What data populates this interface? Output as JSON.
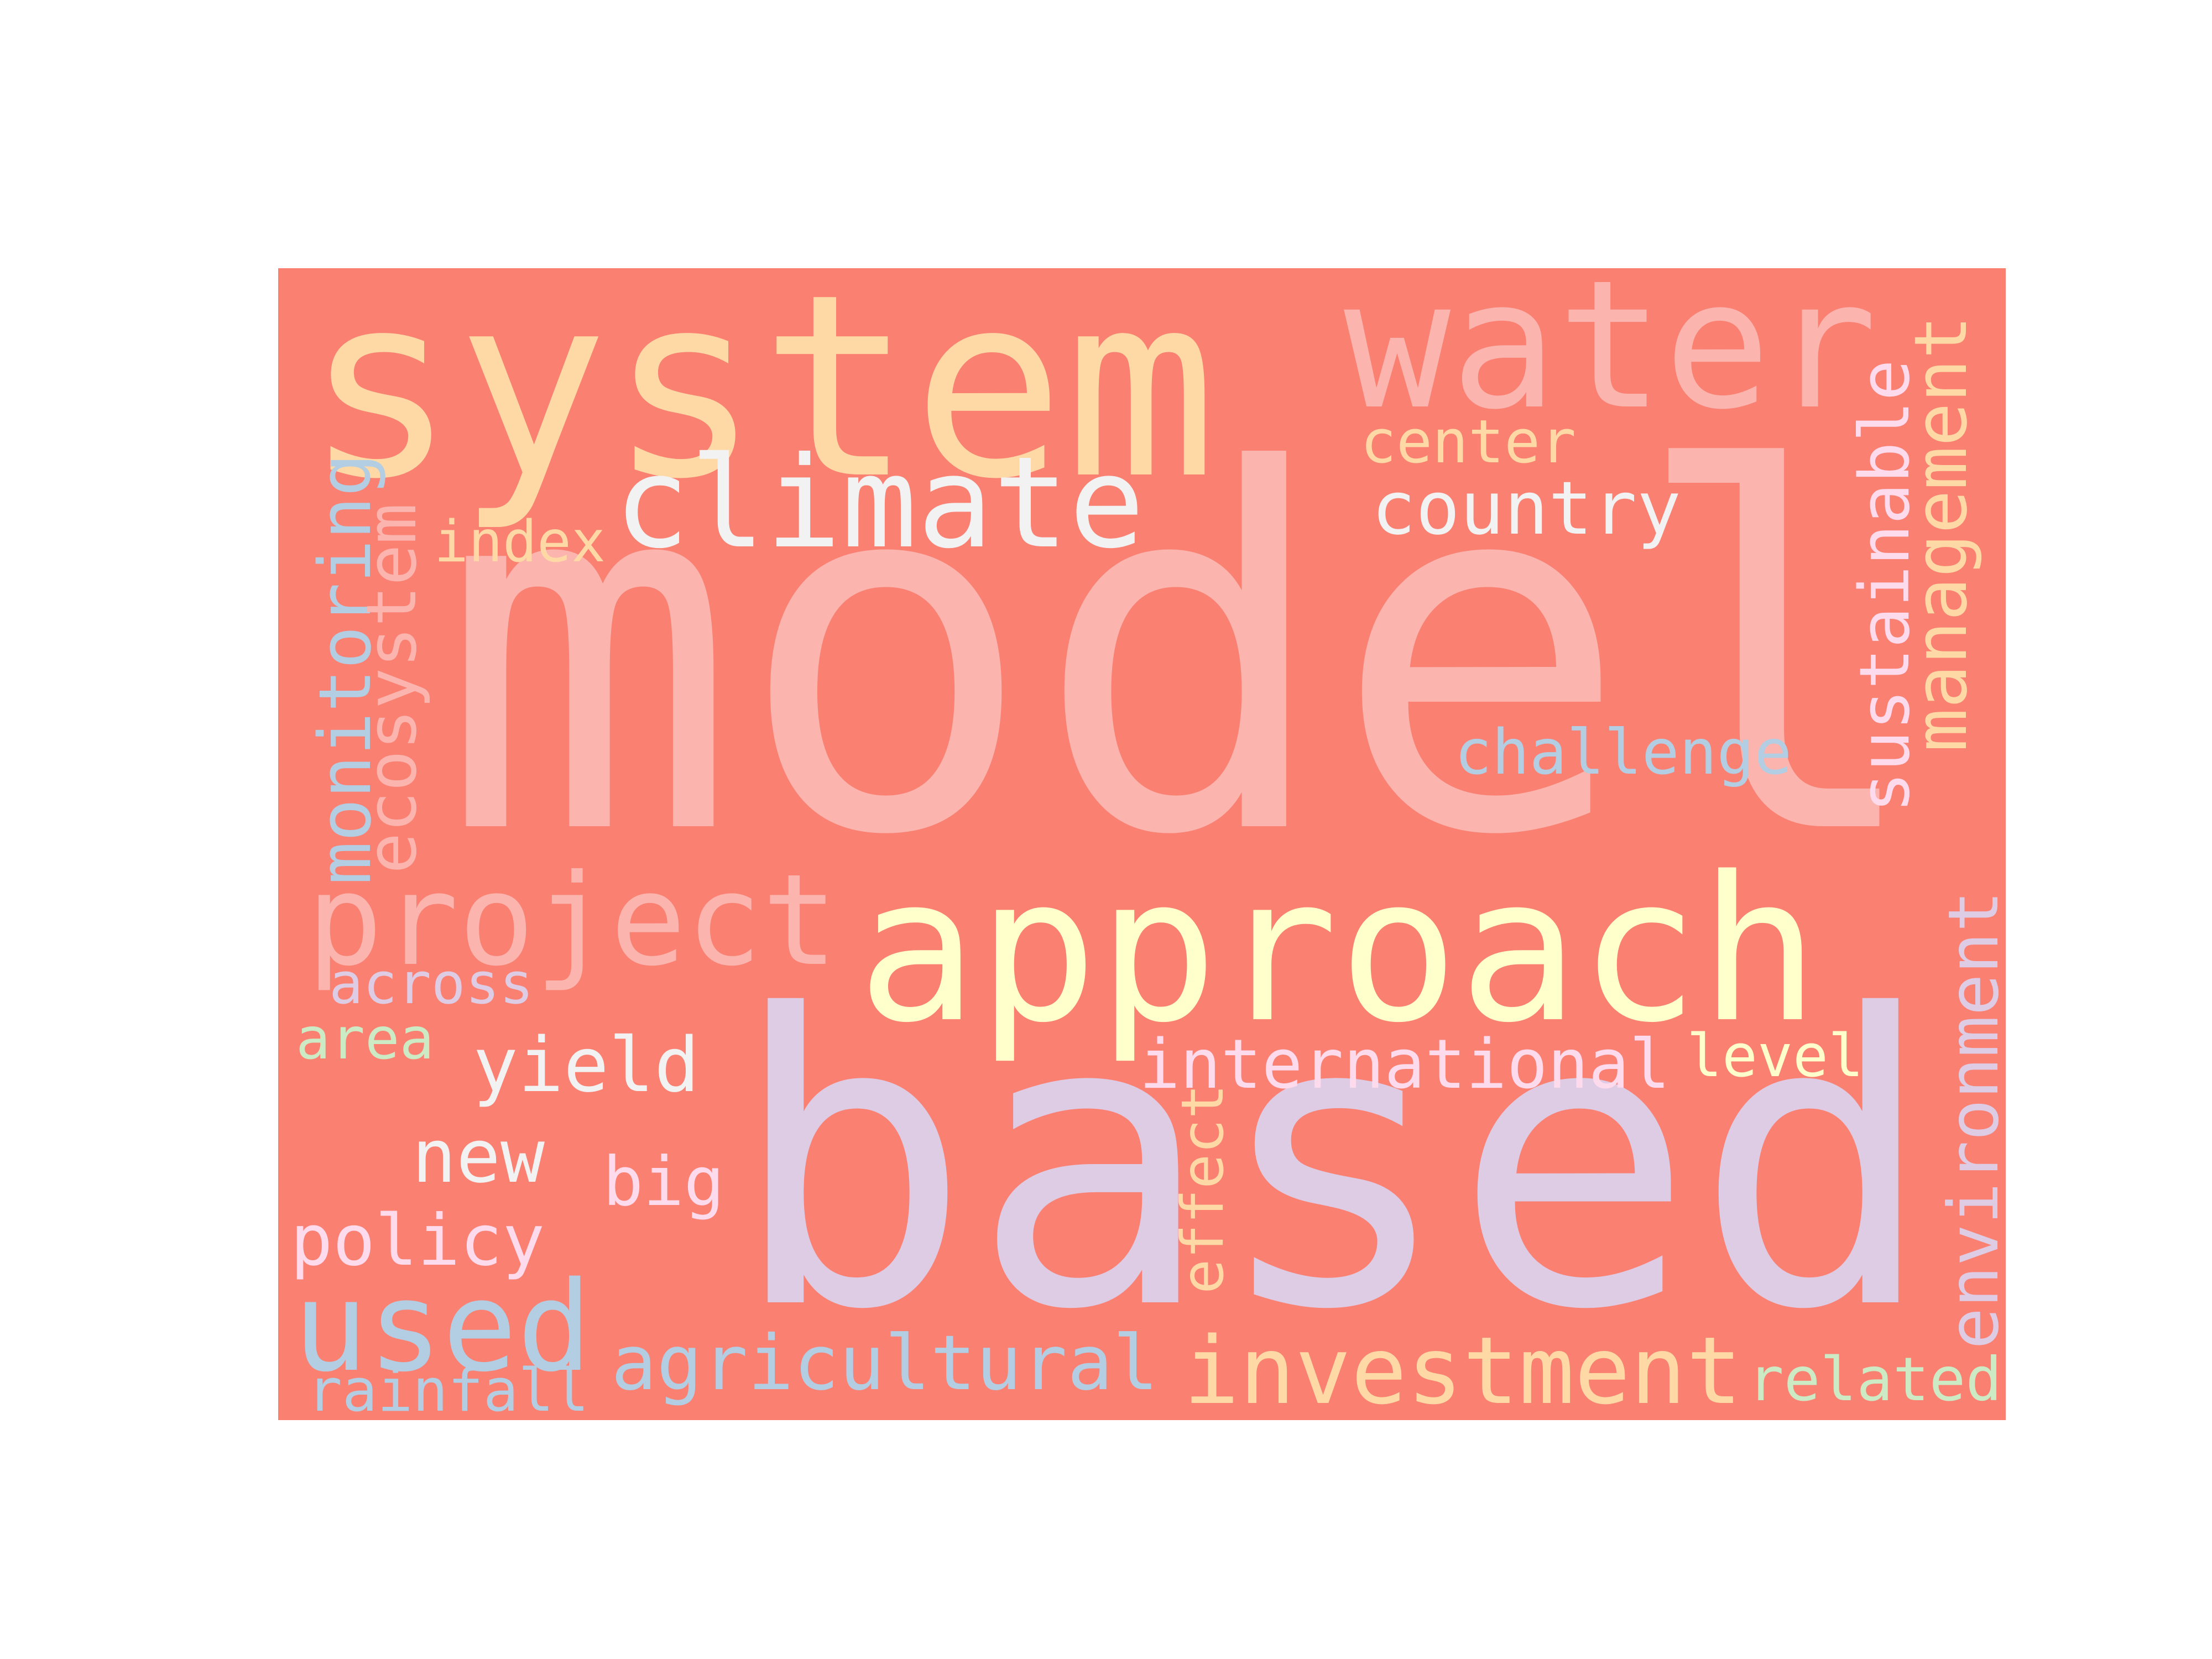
{
  "words": [
    {
      "key": "model",
      "text": "model",
      "color": "#fbb4ae"
    },
    {
      "key": "based",
      "text": "based",
      "color": "#decbe4"
    },
    {
      "key": "system",
      "text": "system",
      "color": "#fed9a6"
    },
    {
      "key": "water",
      "text": "water",
      "color": "#fbb4ae"
    },
    {
      "key": "approach",
      "text": "approach",
      "color": "#ffffcc"
    },
    {
      "key": "climate",
      "text": "climate",
      "color": "#f2f2f2"
    },
    {
      "key": "project",
      "text": "project",
      "color": "#fbb4ae"
    },
    {
      "key": "investment",
      "text": "investment",
      "color": "#fed9a6"
    },
    {
      "key": "used",
      "text": "used",
      "color": "#b3cde3"
    },
    {
      "key": "country",
      "text": "country",
      "color": "#f2f2f2"
    },
    {
      "key": "international",
      "text": "international",
      "color": "#fddaec"
    },
    {
      "key": "agricultural",
      "text": "agricultural",
      "color": "#b3cde3"
    },
    {
      "key": "management",
      "text": "management",
      "color": "#fed9a6"
    },
    {
      "key": "sustainable",
      "text": "sustainable",
      "color": "#fddaec"
    },
    {
      "key": "environment",
      "text": "environment",
      "color": "#decbe4"
    },
    {
      "key": "monitoring",
      "text": "monitoring",
      "color": "#b3cde3"
    },
    {
      "key": "ecosystem",
      "text": "ecosystem",
      "color": "#fbb4ae"
    },
    {
      "key": "challenge",
      "text": "challenge",
      "color": "#b3cde3"
    },
    {
      "key": "yield",
      "text": "yield",
      "color": "#f2f2f2"
    },
    {
      "key": "policy",
      "text": "policy",
      "color": "#fddaec"
    },
    {
      "key": "new",
      "text": "new",
      "color": "#f2f2f2"
    },
    {
      "key": "big",
      "text": "big",
      "color": "#fddaec"
    },
    {
      "key": "center",
      "text": "center",
      "color": "#fed9a6"
    },
    {
      "key": "index",
      "text": "index",
      "color": "#fed9a6"
    },
    {
      "key": "across",
      "text": "across",
      "color": "#decbe4"
    },
    {
      "key": "area",
      "text": "area",
      "color": "#ccebc5"
    },
    {
      "key": "rainfall",
      "text": "rainfall",
      "color": "#b3cde3"
    },
    {
      "key": "related",
      "text": "related",
      "color": "#ccebc5"
    },
    {
      "key": "level",
      "text": "level",
      "color": "#ffffcc"
    },
    {
      "key": "effect",
      "text": "effect",
      "color": "#fed9a6"
    }
  ]
}
